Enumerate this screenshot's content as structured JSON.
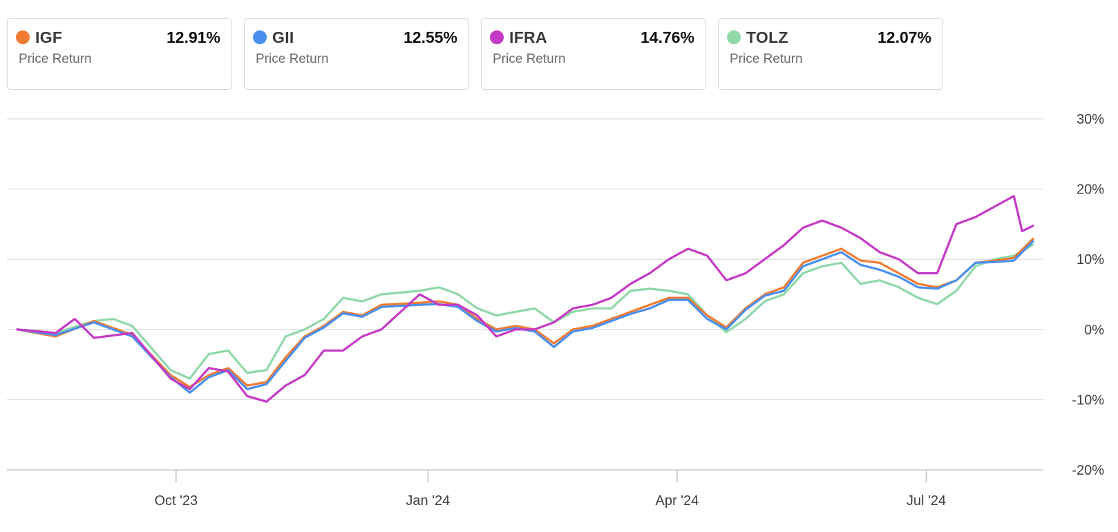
{
  "legend": [
    {
      "ticker": "IGF",
      "value": "12.91%",
      "label": "Price Return",
      "color": "#f07c33"
    },
    {
      "ticker": "GII",
      "value": "12.55%",
      "label": "Price Return",
      "color": "#4a90f0"
    },
    {
      "ticker": "IFRA",
      "value": "14.76%",
      "label": "Price Return",
      "color": "#c53ac5"
    },
    {
      "ticker": "TOLZ",
      "value": "12.07%",
      "label": "Price Return",
      "color": "#8fd8a8"
    }
  ],
  "chart_data": {
    "type": "line",
    "title": "",
    "xlabel": "",
    "ylabel": "",
    "ylim": [
      -20,
      30
    ],
    "y_ticks": [
      "30%",
      "20%",
      "10%",
      "0%",
      "-10%",
      "-20%"
    ],
    "y_tick_values": [
      30,
      20,
      10,
      0,
      -10,
      -20
    ],
    "x_ticks": [
      "Oct '23",
      "Jan '24",
      "Apr '24",
      "Jul '24"
    ],
    "x_tick_dates": [
      "2023-10-01",
      "2024-01-01",
      "2024-04-01",
      "2024-07-01"
    ],
    "x_range": [
      "2023-08-04",
      "2024-08-09"
    ],
    "grid": true,
    "legend_position": "top",
    "series": [
      {
        "name": "IGF",
        "color": "#f07c33",
        "points": [
          [
            "2023-08-04",
            0
          ],
          [
            "2023-08-18",
            -1
          ],
          [
            "2023-09-01",
            1.2
          ],
          [
            "2023-09-15",
            -0.8
          ],
          [
            "2023-09-29",
            -6.5
          ],
          [
            "2023-10-06",
            -8.2
          ],
          [
            "2023-10-13",
            -6.5
          ],
          [
            "2023-10-20",
            -5.5
          ],
          [
            "2023-10-27",
            -8
          ],
          [
            "2023-11-03",
            -7.5
          ],
          [
            "2023-11-10",
            -4
          ],
          [
            "2023-11-17",
            -1
          ],
          [
            "2023-11-24",
            0.5
          ],
          [
            "2023-12-01",
            2.5
          ],
          [
            "2023-12-08",
            2
          ],
          [
            "2023-12-15",
            3.5
          ],
          [
            "2023-12-29",
            3.8
          ],
          [
            "2024-01-05",
            4
          ],
          [
            "2024-01-12",
            3.5
          ],
          [
            "2024-01-19",
            1.5
          ],
          [
            "2024-01-26",
            0
          ],
          [
            "2024-02-02",
            0.5
          ],
          [
            "2024-02-09",
            0
          ],
          [
            "2024-02-16",
            -2
          ],
          [
            "2024-02-23",
            0
          ],
          [
            "2024-03-01",
            0.5
          ],
          [
            "2024-03-08",
            1.5
          ],
          [
            "2024-03-15",
            2.5
          ],
          [
            "2024-03-22",
            3.5
          ],
          [
            "2024-03-29",
            4.5
          ],
          [
            "2024-04-05",
            4.5
          ],
          [
            "2024-04-12",
            2
          ],
          [
            "2024-04-19",
            0.3
          ],
          [
            "2024-04-26",
            3
          ],
          [
            "2024-05-03",
            5
          ],
          [
            "2024-05-10",
            6
          ],
          [
            "2024-05-17",
            9.5
          ],
          [
            "2024-05-24",
            10.5
          ],
          [
            "2024-05-31",
            11.5
          ],
          [
            "2024-06-07",
            9.8
          ],
          [
            "2024-06-14",
            9.5
          ],
          [
            "2024-06-21",
            8
          ],
          [
            "2024-06-28",
            6.5
          ],
          [
            "2024-07-05",
            6
          ],
          [
            "2024-07-12",
            7
          ],
          [
            "2024-07-19",
            9.5
          ],
          [
            "2024-07-26",
            9.8
          ],
          [
            "2024-08-02",
            10.2
          ],
          [
            "2024-08-09",
            12.91
          ]
        ]
      },
      {
        "name": "GII",
        "color": "#4a90f0",
        "points": [
          [
            "2023-08-04",
            0
          ],
          [
            "2023-08-18",
            -0.8
          ],
          [
            "2023-09-01",
            1
          ],
          [
            "2023-09-15",
            -1
          ],
          [
            "2023-09-29",
            -6.8
          ],
          [
            "2023-10-06",
            -9
          ],
          [
            "2023-10-13",
            -6.8
          ],
          [
            "2023-10-20",
            -5.8
          ],
          [
            "2023-10-27",
            -8.5
          ],
          [
            "2023-11-03",
            -7.8
          ],
          [
            "2023-11-10",
            -4.5
          ],
          [
            "2023-11-17",
            -1.2
          ],
          [
            "2023-11-24",
            0.3
          ],
          [
            "2023-12-01",
            2.3
          ],
          [
            "2023-12-08",
            1.8
          ],
          [
            "2023-12-15",
            3.2
          ],
          [
            "2023-12-29",
            3.5
          ],
          [
            "2024-01-05",
            3.6
          ],
          [
            "2024-01-12",
            3.2
          ],
          [
            "2024-01-19",
            1.2
          ],
          [
            "2024-01-26",
            -0.3
          ],
          [
            "2024-02-02",
            0.2
          ],
          [
            "2024-02-09",
            -0.3
          ],
          [
            "2024-02-16",
            -2.5
          ],
          [
            "2024-02-23",
            -0.3
          ],
          [
            "2024-03-01",
            0.2
          ],
          [
            "2024-03-08",
            1.2
          ],
          [
            "2024-03-15",
            2.2
          ],
          [
            "2024-03-22",
            3
          ],
          [
            "2024-03-29",
            4.2
          ],
          [
            "2024-04-05",
            4.2
          ],
          [
            "2024-04-12",
            1.5
          ],
          [
            "2024-04-19",
            0
          ],
          [
            "2024-04-26",
            2.8
          ],
          [
            "2024-05-03",
            4.8
          ],
          [
            "2024-05-10",
            5.5
          ],
          [
            "2024-05-17",
            9
          ],
          [
            "2024-05-24",
            10
          ],
          [
            "2024-05-31",
            11
          ],
          [
            "2024-06-07",
            9.2
          ],
          [
            "2024-06-14",
            8.5
          ],
          [
            "2024-06-21",
            7.5
          ],
          [
            "2024-06-28",
            6
          ],
          [
            "2024-07-05",
            5.8
          ],
          [
            "2024-07-12",
            7
          ],
          [
            "2024-07-19",
            9.5
          ],
          [
            "2024-07-26",
            9.6
          ],
          [
            "2024-08-02",
            9.8
          ],
          [
            "2024-08-09",
            12.55
          ]
        ]
      },
      {
        "name": "IFRA",
        "color": "#c53ac5",
        "points": [
          [
            "2023-08-04",
            0
          ],
          [
            "2023-08-18",
            -0.5
          ],
          [
            "2023-08-25",
            1.5
          ],
          [
            "2023-09-01",
            -1.2
          ],
          [
            "2023-09-15",
            -0.5
          ],
          [
            "2023-09-29",
            -7
          ],
          [
            "2023-10-06",
            -8.5
          ],
          [
            "2023-10-13",
            -5.5
          ],
          [
            "2023-10-20",
            -6
          ],
          [
            "2023-10-27",
            -9.5
          ],
          [
            "2023-11-03",
            -10.3
          ],
          [
            "2023-11-10",
            -8
          ],
          [
            "2023-11-17",
            -6.5
          ],
          [
            "2023-11-24",
            -3
          ],
          [
            "2023-12-01",
            -3
          ],
          [
            "2023-12-08",
            -1
          ],
          [
            "2023-12-15",
            0
          ],
          [
            "2023-12-22",
            2.5
          ],
          [
            "2023-12-29",
            5
          ],
          [
            "2024-01-05",
            3.5
          ],
          [
            "2024-01-12",
            3.5
          ],
          [
            "2024-01-19",
            2
          ],
          [
            "2024-01-26",
            -1
          ],
          [
            "2024-02-02",
            0
          ],
          [
            "2024-02-09",
            0
          ],
          [
            "2024-02-16",
            1
          ],
          [
            "2024-02-23",
            3
          ],
          [
            "2024-03-01",
            3.5
          ],
          [
            "2024-03-08",
            4.5
          ],
          [
            "2024-03-15",
            6.5
          ],
          [
            "2024-03-22",
            8
          ],
          [
            "2024-03-29",
            10
          ],
          [
            "2024-04-05",
            11.5
          ],
          [
            "2024-04-12",
            10.5
          ],
          [
            "2024-04-19",
            7
          ],
          [
            "2024-04-26",
            8
          ],
          [
            "2024-05-03",
            10
          ],
          [
            "2024-05-10",
            12
          ],
          [
            "2024-05-17",
            14.5
          ],
          [
            "2024-05-24",
            15.5
          ],
          [
            "2024-05-31",
            14.5
          ],
          [
            "2024-06-07",
            13
          ],
          [
            "2024-06-14",
            11
          ],
          [
            "2024-06-21",
            10
          ],
          [
            "2024-06-28",
            8
          ],
          [
            "2024-07-05",
            8
          ],
          [
            "2024-07-12",
            15
          ],
          [
            "2024-07-19",
            16
          ],
          [
            "2024-07-26",
            17.5
          ],
          [
            "2024-08-02",
            19
          ],
          [
            "2024-08-05",
            14
          ],
          [
            "2024-08-09",
            14.76
          ]
        ]
      },
      {
        "name": "TOLZ",
        "color": "#8fd8a8",
        "points": [
          [
            "2023-08-04",
            0
          ],
          [
            "2023-08-18",
            -0.5
          ],
          [
            "2023-09-01",
            1.2
          ],
          [
            "2023-09-08",
            1.5
          ],
          [
            "2023-09-15",
            0.5
          ],
          [
            "2023-09-29",
            -5.8
          ],
          [
            "2023-10-06",
            -7
          ],
          [
            "2023-10-13",
            -3.5
          ],
          [
            "2023-10-20",
            -3
          ],
          [
            "2023-10-27",
            -6.2
          ],
          [
            "2023-11-03",
            -5.8
          ],
          [
            "2023-11-10",
            -1
          ],
          [
            "2023-11-17",
            0
          ],
          [
            "2023-11-24",
            1.5
          ],
          [
            "2023-12-01",
            4.5
          ],
          [
            "2023-12-08",
            4
          ],
          [
            "2023-12-15",
            5
          ],
          [
            "2023-12-29",
            5.5
          ],
          [
            "2024-01-05",
            6
          ],
          [
            "2024-01-12",
            5
          ],
          [
            "2024-01-19",
            3
          ],
          [
            "2024-01-26",
            2
          ],
          [
            "2024-02-02",
            2.5
          ],
          [
            "2024-02-09",
            3
          ],
          [
            "2024-02-16",
            1
          ],
          [
            "2024-02-23",
            2.5
          ],
          [
            "2024-03-01",
            3
          ],
          [
            "2024-03-08",
            3
          ],
          [
            "2024-03-15",
            5.5
          ],
          [
            "2024-03-22",
            5.8
          ],
          [
            "2024-03-29",
            5.5
          ],
          [
            "2024-04-05",
            5
          ],
          [
            "2024-04-12",
            2
          ],
          [
            "2024-04-19",
            -0.4
          ],
          [
            "2024-04-26",
            1.5
          ],
          [
            "2024-05-03",
            4
          ],
          [
            "2024-05-10",
            5
          ],
          [
            "2024-05-17",
            8
          ],
          [
            "2024-05-24",
            9
          ],
          [
            "2024-05-31",
            9.5
          ],
          [
            "2024-06-07",
            6.5
          ],
          [
            "2024-06-14",
            7
          ],
          [
            "2024-06-21",
            6
          ],
          [
            "2024-06-28",
            4.5
          ],
          [
            "2024-07-05",
            3.6
          ],
          [
            "2024-07-12",
            5.5
          ],
          [
            "2024-07-19",
            9
          ],
          [
            "2024-07-26",
            10
          ],
          [
            "2024-08-02",
            10.5
          ],
          [
            "2024-08-09",
            12.07
          ]
        ]
      }
    ]
  }
}
